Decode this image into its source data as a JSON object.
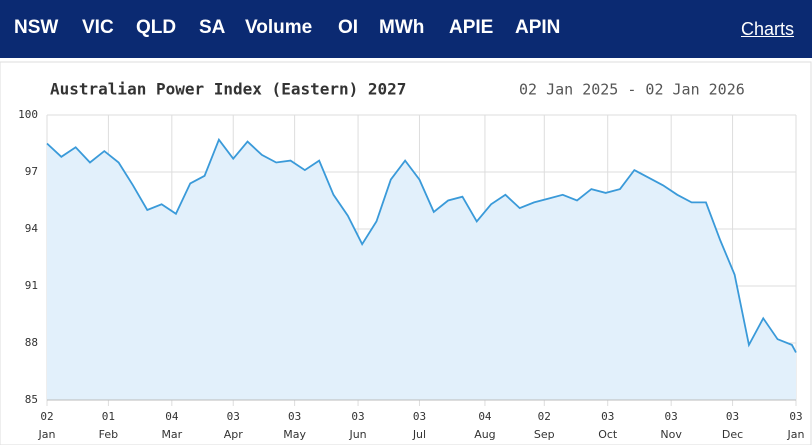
{
  "nav": {
    "items": [
      "NSW",
      "VIC",
      "QLD",
      "SA",
      "Volume",
      "OI",
      "MWh",
      "APIE",
      "APIN"
    ],
    "link": "Charts"
  },
  "chart_data": {
    "type": "area",
    "title": "Australian Power Index (Eastern) 2027",
    "subtitle": "02 Jan 2025 - 02 Jan 2026",
    "x": [
      "2025-01-02",
      "2025-01-09",
      "2025-01-16",
      "2025-01-23",
      "2025-01-30",
      "2025-02-06",
      "2025-02-13",
      "2025-02-20",
      "2025-02-27",
      "2025-03-06",
      "2025-03-13",
      "2025-03-20",
      "2025-03-27",
      "2025-04-03",
      "2025-04-10",
      "2025-04-17",
      "2025-04-24",
      "2025-05-01",
      "2025-05-08",
      "2025-05-15",
      "2025-05-22",
      "2025-05-29",
      "2025-06-05",
      "2025-06-12",
      "2025-06-19",
      "2025-06-26",
      "2025-07-03",
      "2025-07-10",
      "2025-07-17",
      "2025-07-24",
      "2025-07-31",
      "2025-08-07",
      "2025-08-14",
      "2025-08-21",
      "2025-08-28",
      "2025-09-04",
      "2025-09-11",
      "2025-09-18",
      "2025-09-25",
      "2025-10-02",
      "2025-10-09",
      "2025-10-16",
      "2025-10-23",
      "2025-10-30",
      "2025-11-06",
      "2025-11-13",
      "2025-11-20",
      "2025-11-27",
      "2025-12-04",
      "2025-12-11",
      "2025-12-18",
      "2025-12-25",
      "2026-01-01",
      "2026-01-03"
    ],
    "values": [
      98.5,
      97.8,
      98.3,
      97.5,
      98.1,
      97.5,
      96.3,
      95.0,
      95.3,
      94.8,
      96.4,
      96.8,
      98.7,
      97.7,
      98.6,
      97.9,
      97.5,
      97.6,
      97.1,
      97.6,
      95.8,
      94.7,
      93.2,
      94.4,
      96.6,
      97.6,
      96.6,
      94.9,
      95.5,
      95.7,
      94.4,
      95.3,
      95.8,
      95.1,
      95.4,
      95.6,
      95.8,
      95.5,
      96.1,
      95.9,
      96.1,
      97.1,
      96.7,
      96.3,
      95.8,
      95.4,
      95.4,
      93.4,
      91.6,
      87.9,
      89.3,
      88.2,
      87.9,
      87.5
    ],
    "color": "#3a9ad9",
    "fill": "#e2f0fb",
    "xlim": [
      "2025-01-02",
      "2026-01-03"
    ],
    "xticks": [
      {
        "value": "2025-01-02",
        "label": [
          "02",
          "Jan"
        ]
      },
      {
        "value": "2025-02-01",
        "label": [
          "01",
          "Feb"
        ]
      },
      {
        "value": "2025-03-04",
        "label": [
          "04",
          "Mar"
        ]
      },
      {
        "value": "2025-04-03",
        "label": [
          "03",
          "Apr"
        ]
      },
      {
        "value": "2025-05-03",
        "label": [
          "03",
          "May"
        ]
      },
      {
        "value": "2025-06-03",
        "label": [
          "03",
          "Jun"
        ]
      },
      {
        "value": "2025-07-03",
        "label": [
          "03",
          "Jul"
        ]
      },
      {
        "value": "2025-08-04",
        "label": [
          "04",
          "Aug"
        ]
      },
      {
        "value": "2025-09-02",
        "label": [
          "02",
          "Sep"
        ]
      },
      {
        "value": "2025-10-03",
        "label": [
          "03",
          "Oct"
        ]
      },
      {
        "value": "2025-11-03",
        "label": [
          "03",
          "Nov"
        ]
      },
      {
        "value": "2025-12-03",
        "label": [
          "03",
          "Dec"
        ]
      },
      {
        "value": "2026-01-03",
        "label": [
          "03",
          "Jan"
        ]
      }
    ],
    "ylim": [
      85,
      100
    ],
    "yticks": [
      85,
      88,
      91,
      94,
      97,
      100
    ],
    "grid": true
  }
}
